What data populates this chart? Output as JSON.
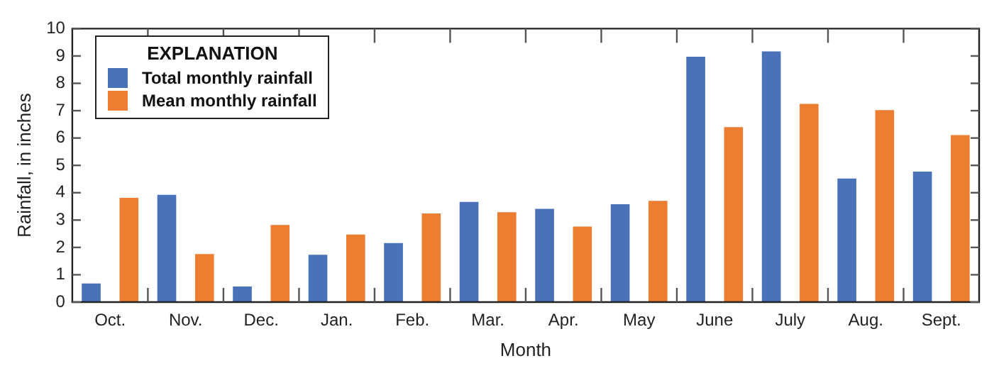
{
  "chart_data": {
    "type": "bar",
    "xlabel": "Month",
    "ylabel": "Rainfall, in inches",
    "legend_title": "EXPLANATION",
    "categories": [
      "Oct.",
      "Nov.",
      "Dec.",
      "Jan.",
      "Feb.",
      "Mar.",
      "Apr.",
      "May",
      "June",
      "July",
      "Aug.",
      "Sept."
    ],
    "series": [
      {
        "name": "Total monthly rainfall",
        "color": "#4a72b8",
        "values": [
          0.68,
          3.92,
          0.57,
          1.73,
          2.16,
          3.66,
          3.41,
          3.58,
          8.97,
          9.17,
          4.52,
          4.77
        ]
      },
      {
        "name": "Mean monthly rainfall",
        "color": "#ed7d31",
        "values": [
          3.81,
          1.76,
          2.82,
          2.47,
          3.24,
          3.29,
          2.76,
          3.7,
          6.4,
          7.25,
          7.02,
          6.11
        ]
      }
    ],
    "ylim": [
      0,
      10
    ],
    "yticks": [
      0,
      1,
      2,
      3,
      4,
      5,
      6,
      7,
      8,
      9,
      10
    ],
    "grid": false,
    "legend": "top left"
  }
}
